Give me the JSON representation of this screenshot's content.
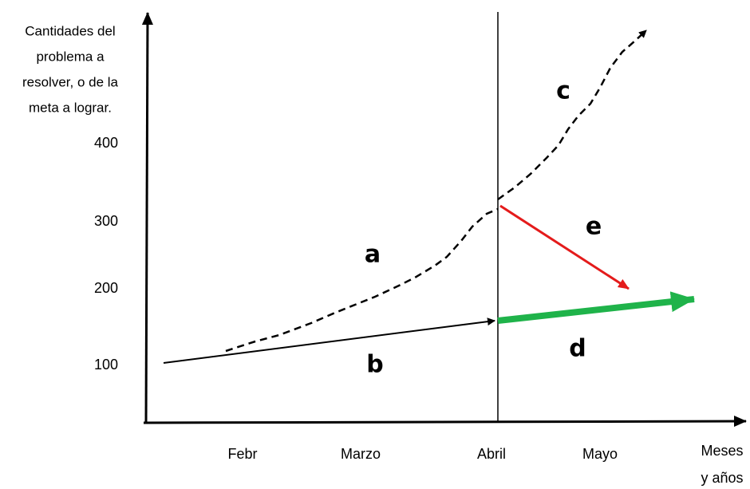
{
  "y_axis_title": [
    "Cantidades del",
    "problema a",
    "resolver, o  de la",
    "meta a lograr."
  ],
  "y_labels": [
    400,
    300,
    200,
    100
  ],
  "x_labels": [
    "Febr",
    "Marzo",
    "Abril",
    "Mayo"
  ],
  "x_axis_title": [
    "Meses",
    "y años"
  ],
  "curve_labels": {
    "a": "a",
    "b": "b",
    "c": "c",
    "d": "d",
    "e": "e"
  }
}
